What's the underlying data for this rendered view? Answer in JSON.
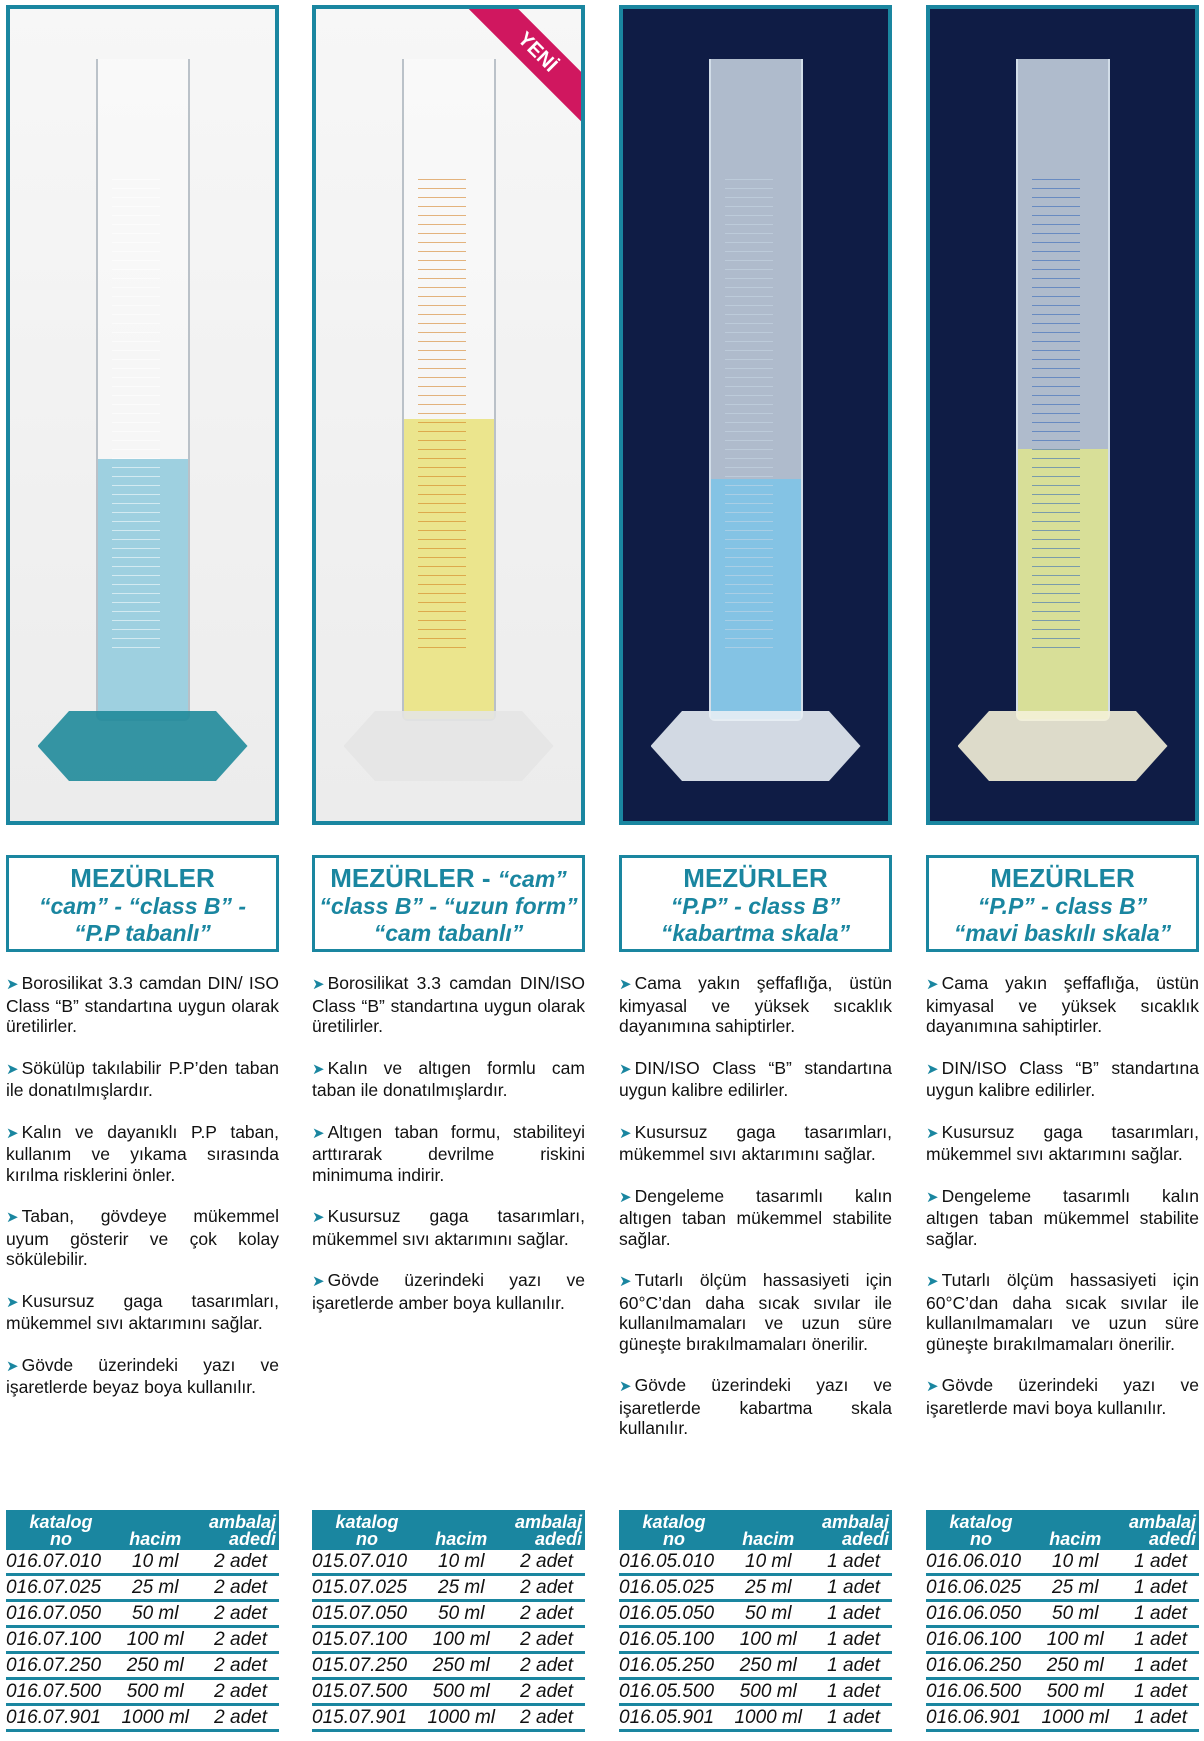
{
  "accent_color": "#1a86a0",
  "new_badge": "YENİ",
  "table_headers": {
    "katalog_no": [
      "katalog",
      "no"
    ],
    "hacim": "hacim",
    "ambalaj": [
      "ambalaj",
      "adedi"
    ]
  },
  "products": [
    {
      "photo": {
        "background": "light",
        "liquid_color": "#8ec9dc",
        "scale_color": "#ffffff",
        "base_color": "#1f8a9a"
      },
      "title": "MEZÜRLER",
      "title_suffix": "",
      "subtitle_lines": [
        "“cam” - “class B”  -",
        "“P.P tabanlı”"
      ],
      "bullets": [
        "Borosilikat 3.3 camdan DIN/ ISO Class “B” standartına uygun olarak üretilirler.",
        "Sökülüp takılabilir P.P’den taban ile donatılmışlardır.",
        "Kalın ve dayanıklı P.P taban, kullanım ve yıkama sırasında kırılma risklerini önler.",
        "Taban, gövdeye mükemmel uyum gösterir ve çok kolay sökülebilir.",
        "Kusursuz gaga tasarımları, mükemmel sıvı aktarımını sağlar.",
        "Gövde üzerindeki yazı ve işaretlerde beyaz boya kullanılır."
      ],
      "rows": [
        [
          "016.07.010",
          "10 ml",
          "2 adet"
        ],
        [
          "016.07.025",
          "25 ml",
          "2 adet"
        ],
        [
          "016.07.050",
          "50 ml",
          "2 adet"
        ],
        [
          "016.07.100",
          "100 ml",
          "2 adet"
        ],
        [
          "016.07.250",
          "250 ml",
          "2 adet"
        ],
        [
          "016.07.500",
          "500 ml",
          "2 adet"
        ],
        [
          "016.07.901",
          "1000 ml",
          "2 adet"
        ]
      ]
    },
    {
      "photo": {
        "background": "light",
        "liquid_color": "#e9e27a",
        "scale_color": "#d27a18",
        "base_color": "#e4e4e4",
        "new": true
      },
      "title": "MEZÜRLER - ",
      "title_suffix": "“cam”",
      "subtitle_lines": [
        "“class B” - “uzun form”",
        "“cam tabanlı”"
      ],
      "bullets": [
        "Borosilikat 3.3 camdan DIN/ISO Class “B” standartına uygun olarak üretilirler.",
        "Kalın ve altıgen formlu cam taban ile donatılmışlardır.",
        "Altıgen taban formu, stabiliteyi arttırarak devrilme riskini minimuma indirir.",
        "Kusursuz gaga tasarımları, mükemmel sıvı aktarımını sağlar.",
        "Gövde üzerindeki yazı ve işaretlerde amber boya kullanılır."
      ],
      "rows": [
        [
          "015.07.010",
          "10 ml",
          "2 adet"
        ],
        [
          "015.07.025",
          "25 ml",
          "2 adet"
        ],
        [
          "015.07.050",
          "50 ml",
          "2 adet"
        ],
        [
          "015.07.100",
          "100 ml",
          "2 adet"
        ],
        [
          "015.07.250",
          "250 ml",
          "2 adet"
        ],
        [
          "015.07.500",
          "500 ml",
          "2 adet"
        ],
        [
          "015.07.901",
          "1000 ml",
          "2 adet"
        ]
      ]
    },
    {
      "photo": {
        "background": "dark",
        "liquid_color": "#7cc4e8",
        "scale_color": "#c8d8e6",
        "base_color": "#e8eef4"
      },
      "title": "MEZÜRLER",
      "title_suffix": "",
      "subtitle_lines": [
        "“P.P” - class B”",
        "“kabartma skala”"
      ],
      "bullets": [
        "Cama yakın şeffaflığa, üstün kimyasal ve yüksek sıcaklık dayanımına sahiptirler.",
        "DIN/ISO Class “B” standartına uygun kalibre edilirler.",
        "Kusursuz gaga tasarımları, mükemmel sıvı aktarımını sağlar.",
        "Dengeleme tasarımlı kalın altıgen taban mükemmel stabilite sağlar.",
        "Tutarlı ölçüm hassasiyeti için 60°C’dan daha sıcak sıvılar ile kullanılmamaları ve uzun süre güneşte bırakılmamaları önerilir.",
        "Gövde üzerindeki yazı ve işaretlerde kabartma skala kullanılır."
      ],
      "rows": [
        [
          "016.05.010",
          "10 ml",
          "1 adet"
        ],
        [
          "016.05.025",
          "25 ml",
          "1 adet"
        ],
        [
          "016.05.050",
          "50 ml",
          "1 adet"
        ],
        [
          "016.05.100",
          "100 ml",
          "1 adet"
        ],
        [
          "016.05.250",
          "250 ml",
          "1 adet"
        ],
        [
          "016.05.500",
          "500 ml",
          "1 adet"
        ],
        [
          "016.05.901",
          "1000 ml",
          "1 adet"
        ]
      ]
    },
    {
      "photo": {
        "background": "dark",
        "liquid_color": "#dfe58e",
        "scale_color": "#2d63b8",
        "base_color": "#f4f1d8"
      },
      "title": "MEZÜRLER",
      "title_suffix": "",
      "subtitle_lines": [
        "“P.P” - class B”",
        "“mavi baskılı skala”"
      ],
      "bullets": [
        "Cama yakın şeffaflığa, üstün kimyasal ve yüksek sıcaklık dayanımına sahiptirler.",
        "DIN/ISO Class “B” standartına uygun kalibre edilirler.",
        "Kusursuz gaga tasarımları, mükemmel sıvı aktarımını sağlar.",
        "Dengeleme tasarımlı kalın altıgen taban mükemmel stabilite sağlar.",
        "Tutarlı ölçüm hassasiyeti için 60°C’dan daha sıcak sıvılar ile kullanılmamaları ve uzun süre güneşte bırakılmamaları önerilir.",
        "Gövde üzerindeki yazı ve işaretlerde mavi boya kullanılır."
      ],
      "rows": [
        [
          "016.06.010",
          "10 ml",
          "1 adet"
        ],
        [
          "016.06.025",
          "25 ml",
          "1 adet"
        ],
        [
          "016.06.050",
          "50 ml",
          "1 adet"
        ],
        [
          "016.06.100",
          "100 ml",
          "1 adet"
        ],
        [
          "016.06.250",
          "250 ml",
          "1 adet"
        ],
        [
          "016.06.500",
          "500 ml",
          "1 adet"
        ],
        [
          "016.06.901",
          "1000 ml",
          "1 adet"
        ]
      ]
    }
  ]
}
